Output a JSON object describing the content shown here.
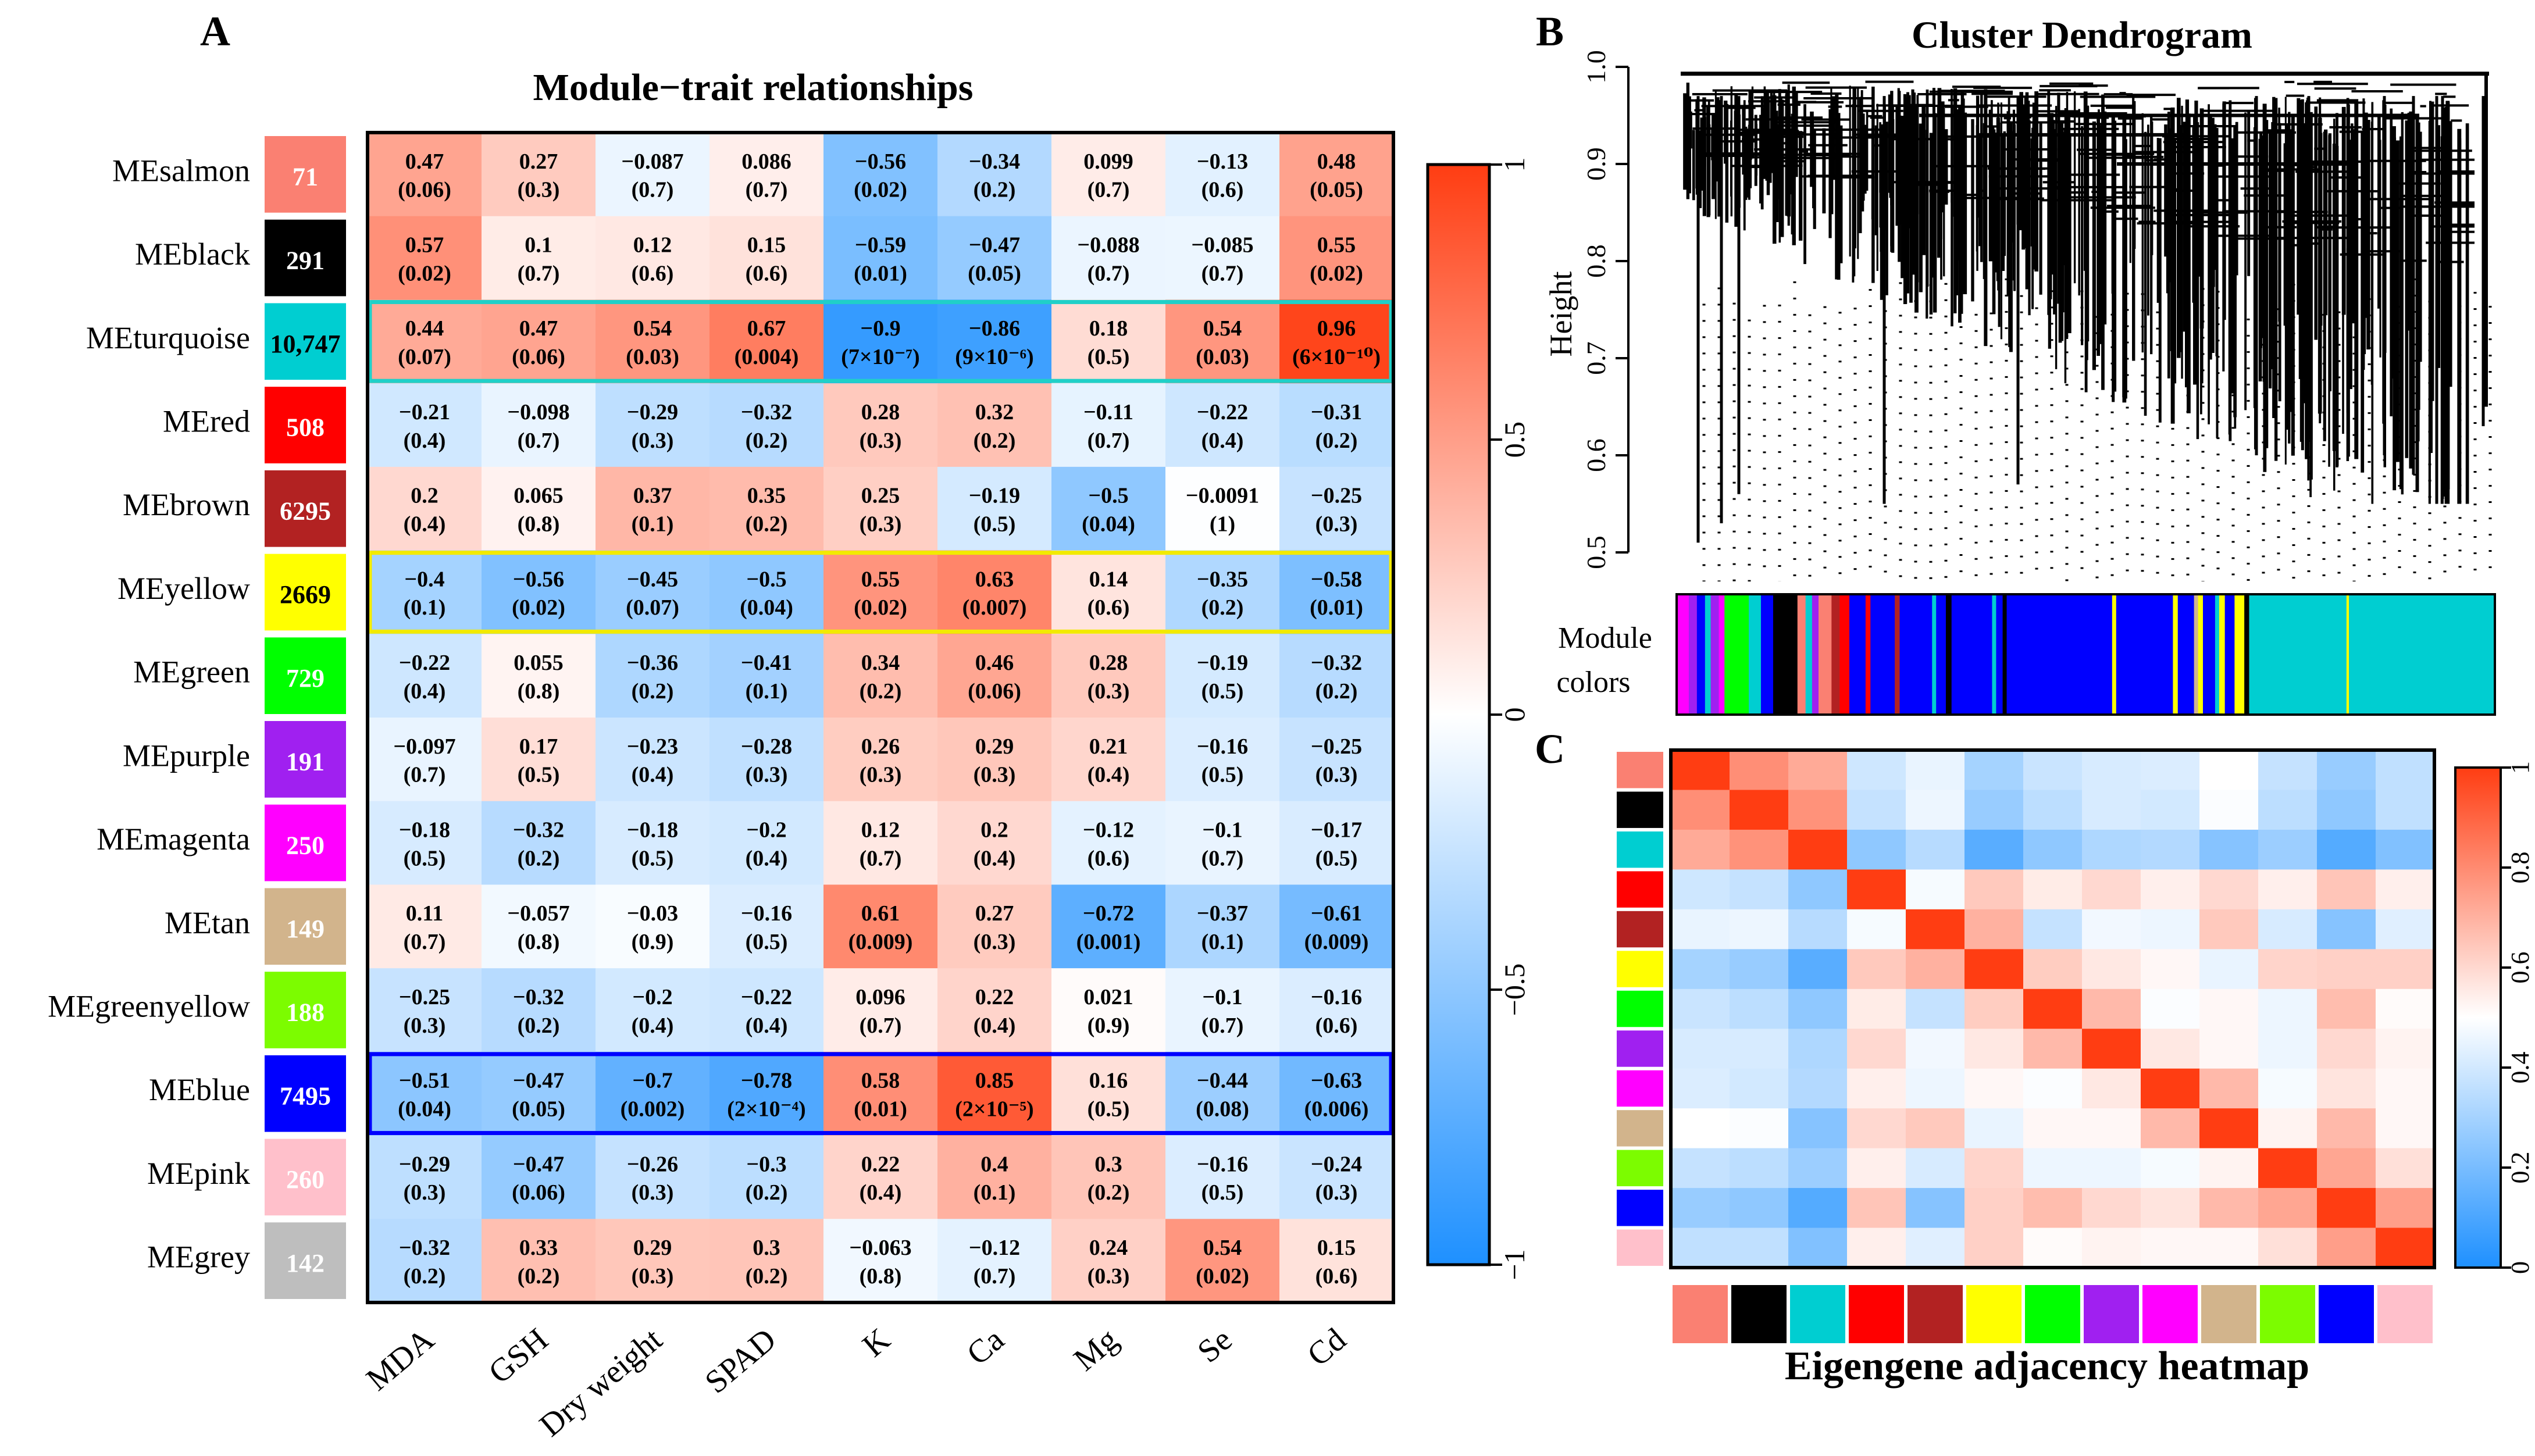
{
  "chart_data": [
    {
      "panel": "A",
      "type": "heatmap",
      "title": "Module−trait relationships",
      "columns": [
        "MDA",
        "GSH",
        "Dry weight",
        "SPAD",
        "K",
        "Ca",
        "Mg",
        "Se",
        "Cd"
      ],
      "rows": [
        {
          "name": "MEsalmon",
          "color": "#FA8072",
          "count": "71",
          "count_color": "#ffffff",
          "r": [
            0.47,
            0.27,
            -0.087,
            0.086,
            -0.56,
            -0.34,
            0.099,
            -0.13,
            0.48
          ],
          "r_label": [
            "0.47",
            "0.27",
            "−0.087",
            "0.086",
            "−0.56",
            "−0.34",
            "0.099",
            "−0.13",
            "0.48"
          ],
          "p": [
            "(0.06)",
            "(0.3)",
            "(0.7)",
            "(0.7)",
            "(0.02)",
            "(0.2)",
            "(0.7)",
            "(0.6)",
            "(0.05)"
          ]
        },
        {
          "name": "MEblack",
          "color": "#000000",
          "count": "291",
          "count_color": "#ffffff",
          "r": [
            0.57,
            0.1,
            0.12,
            0.15,
            -0.59,
            -0.47,
            -0.088,
            -0.085,
            0.55
          ],
          "r_label": [
            "0.57",
            "0.1",
            "0.12",
            "0.15",
            "−0.59",
            "−0.47",
            "−0.088",
            "−0.085",
            "0.55"
          ],
          "p": [
            "(0.02)",
            "(0.7)",
            "(0.6)",
            "(0.6)",
            "(0.01)",
            "(0.05)",
            "(0.7)",
            "(0.7)",
            "(0.02)"
          ]
        },
        {
          "name": "MEturquoise",
          "color": "#00CED1",
          "count": "10,747",
          "count_color": "#000000",
          "r": [
            0.44,
            0.47,
            0.54,
            0.67,
            -0.9,
            -0.86,
            0.18,
            0.54,
            0.96
          ],
          "r_label": [
            "0.44",
            "0.47",
            "0.54",
            "0.67",
            "−0.9",
            "−0.86",
            "0.18",
            "0.54",
            "0.96"
          ],
          "p": [
            "(0.07)",
            "(0.06)",
            "(0.03)",
            "(0.004)",
            "(7×10⁻⁷)",
            "(9×10⁻⁶)",
            "(0.5)",
            "(0.03)",
            "(6×10⁻¹⁰)"
          ]
        },
        {
          "name": "MEred",
          "color": "#FF0000",
          "count": "508",
          "count_color": "#ffffff",
          "r": [
            -0.21,
            -0.098,
            -0.29,
            -0.32,
            0.28,
            0.32,
            -0.11,
            -0.22,
            -0.31
          ],
          "r_label": [
            "−0.21",
            "−0.098",
            "−0.29",
            "−0.32",
            "0.28",
            "0.32",
            "−0.11",
            "−0.22",
            "−0.31"
          ],
          "p": [
            "(0.4)",
            "(0.7)",
            "(0.3)",
            "(0.2)",
            "(0.3)",
            "(0.2)",
            "(0.7)",
            "(0.4)",
            "(0.2)"
          ]
        },
        {
          "name": "MEbrown",
          "color": "#B22222",
          "count": "6295",
          "count_color": "#ffffff",
          "r": [
            0.2,
            0.065,
            0.37,
            0.35,
            0.25,
            -0.19,
            -0.5,
            -0.0091,
            -0.25
          ],
          "r_label": [
            "0.2",
            "0.065",
            "0.37",
            "0.35",
            "0.25",
            "−0.19",
            "−0.5",
            "−0.0091",
            "−0.25"
          ],
          "p": [
            "(0.4)",
            "(0.8)",
            "(0.1)",
            "(0.2)",
            "(0.3)",
            "(0.5)",
            "(0.04)",
            "(1)",
            "(0.3)"
          ]
        },
        {
          "name": "MEyellow",
          "color": "#FFFF00",
          "count": "2669",
          "count_color": "#000000",
          "r": [
            -0.4,
            -0.56,
            -0.45,
            -0.5,
            0.55,
            0.63,
            0.14,
            -0.35,
            -0.58
          ],
          "r_label": [
            "−0.4",
            "−0.56",
            "−0.45",
            "−0.5",
            "0.55",
            "0.63",
            "0.14",
            "−0.35",
            "−0.58"
          ],
          "p": [
            "(0.1)",
            "(0.02)",
            "(0.07)",
            "(0.04)",
            "(0.02)",
            "(0.007)",
            "(0.6)",
            "(0.2)",
            "(0.01)"
          ]
        },
        {
          "name": "MEgreen",
          "color": "#00FF00",
          "count": "729",
          "count_color": "#ffffff",
          "r": [
            -0.22,
            0.055,
            -0.36,
            -0.41,
            0.34,
            0.46,
            0.28,
            -0.19,
            -0.32
          ],
          "r_label": [
            "−0.22",
            "0.055",
            "−0.36",
            "−0.41",
            "0.34",
            "0.46",
            "0.28",
            "−0.19",
            "−0.32"
          ],
          "p": [
            "(0.4)",
            "(0.8)",
            "(0.2)",
            "(0.1)",
            "(0.2)",
            "(0.06)",
            "(0.3)",
            "(0.5)",
            "(0.2)"
          ]
        },
        {
          "name": "MEpurple",
          "color": "#A020F0",
          "count": "191",
          "count_color": "#ffffff",
          "r": [
            -0.097,
            0.17,
            -0.23,
            -0.28,
            0.26,
            0.29,
            0.21,
            -0.16,
            -0.25
          ],
          "r_label": [
            "−0.097",
            "0.17",
            "−0.23",
            "−0.28",
            "0.26",
            "0.29",
            "0.21",
            "−0.16",
            "−0.25"
          ],
          "p": [
            "(0.7)",
            "(0.5)",
            "(0.4)",
            "(0.3)",
            "(0.3)",
            "(0.3)",
            "(0.4)",
            "(0.5)",
            "(0.3)"
          ]
        },
        {
          "name": "MEmagenta",
          "color": "#FF00FF",
          "count": "250",
          "count_color": "#ffffff",
          "r": [
            -0.18,
            -0.32,
            -0.18,
            -0.2,
            0.12,
            0.2,
            -0.12,
            -0.1,
            -0.17
          ],
          "r_label": [
            "−0.18",
            "−0.32",
            "−0.18",
            "−0.2",
            "0.12",
            "0.2",
            "−0.12",
            "−0.1",
            "−0.17"
          ],
          "p": [
            "(0.5)",
            "(0.2)",
            "(0.5)",
            "(0.4)",
            "(0.7)",
            "(0.4)",
            "(0.6)",
            "(0.7)",
            "(0.5)"
          ]
        },
        {
          "name": "MEtan",
          "color": "#D2B48C",
          "count": "149",
          "count_color": "#ffffff",
          "r": [
            0.11,
            -0.057,
            -0.03,
            -0.16,
            0.61,
            0.27,
            -0.72,
            -0.37,
            -0.61
          ],
          "r_label": [
            "0.11",
            "−0.057",
            "−0.03",
            "−0.16",
            "0.61",
            "0.27",
            "−0.72",
            "−0.37",
            "−0.61"
          ],
          "p": [
            "(0.7)",
            "(0.8)",
            "(0.9)",
            "(0.5)",
            "(0.009)",
            "(0.3)",
            "(0.001)",
            "(0.1)",
            "(0.009)"
          ]
        },
        {
          "name": "MEgreenyellow",
          "color": "#7CFC00",
          "count": "188",
          "count_color": "#ffffff",
          "r": [
            -0.25,
            -0.32,
            -0.2,
            -0.22,
            0.096,
            0.22,
            0.021,
            -0.1,
            -0.16
          ],
          "r_label": [
            "−0.25",
            "−0.32",
            "−0.2",
            "−0.22",
            "0.096",
            "0.22",
            "0.021",
            "−0.1",
            "−0.16"
          ],
          "p": [
            "(0.3)",
            "(0.2)",
            "(0.4)",
            "(0.4)",
            "(0.7)",
            "(0.4)",
            "(0.9)",
            "(0.7)",
            "(0.6)"
          ]
        },
        {
          "name": "MEblue",
          "color": "#0000FF",
          "count": "7495",
          "count_color": "#ffffff",
          "r": [
            -0.51,
            -0.47,
            -0.7,
            -0.78,
            0.58,
            0.85,
            0.16,
            -0.44,
            -0.63
          ],
          "r_label": [
            "−0.51",
            "−0.47",
            "−0.7",
            "−0.78",
            "0.58",
            "0.85",
            "0.16",
            "−0.44",
            "−0.63"
          ],
          "p": [
            "(0.04)",
            "(0.05)",
            "(0.002)",
            "(2×10⁻⁴)",
            "(0.01)",
            "(2×10⁻⁵)",
            "(0.5)",
            "(0.08)",
            "(0.006)"
          ]
        },
        {
          "name": "MEpink",
          "color": "#FFC0CB",
          "count": "260",
          "count_color": "#ffffff",
          "r": [
            -0.29,
            -0.47,
            -0.26,
            -0.3,
            0.22,
            0.4,
            0.3,
            -0.16,
            -0.24
          ],
          "r_label": [
            "−0.29",
            "−0.47",
            "−0.26",
            "−0.3",
            "0.22",
            "0.4",
            "0.3",
            "−0.16",
            "−0.24"
          ],
          "p": [
            "(0.3)",
            "(0.06)",
            "(0.3)",
            "(0.2)",
            "(0.4)",
            "(0.1)",
            "(0.2)",
            "(0.5)",
            "(0.3)"
          ]
        },
        {
          "name": "MEgrey",
          "color": "#BEBEBE",
          "count": "142",
          "count_color": "#ffffff",
          "r": [
            -0.32,
            0.33,
            0.29,
            0.3,
            -0.063,
            -0.12,
            0.24,
            0.54,
            0.15
          ],
          "r_label": [
            "−0.32",
            "0.33",
            "0.29",
            "0.3",
            "−0.063",
            "−0.12",
            "0.24",
            "0.54",
            "0.15"
          ],
          "p": [
            "(0.2)",
            "(0.2)",
            "(0.3)",
            "(0.2)",
            "(0.8)",
            "(0.7)",
            "(0.3)",
            "(0.02)",
            "(0.6)"
          ]
        }
      ],
      "highlighted_rows": [
        {
          "row": "MEturquoise",
          "color": "#20D0C8"
        },
        {
          "row": "MEyellow",
          "color": "#F2EA00"
        },
        {
          "row": "MEblue",
          "color": "#0000FF"
        }
      ],
      "colorbar": {
        "range": [
          -1,
          1
        ],
        "ticks": [
          "−1",
          "−0.5",
          "0",
          "0.5",
          "1"
        ],
        "tick_values": [
          -1,
          -0.5,
          0,
          0.5,
          1
        ]
      }
    },
    {
      "panel": "B",
      "type": "dendrogram",
      "title": "Cluster Dendrogram",
      "ylabel": "Height",
      "ylim": [
        0.5,
        1.0
      ],
      "yticks": [
        "0.5",
        "0.6",
        "0.7",
        "0.8",
        "0.9",
        "1.0"
      ],
      "ytick_values": [
        0.5,
        0.6,
        0.7,
        0.8,
        0.9,
        1.0
      ],
      "color_bar_label": [
        "Module",
        "colors"
      ],
      "module_color_strip": [
        {
          "color": "#FF00FF",
          "w": 1.5
        },
        {
          "color": "#A020F0",
          "w": 1
        },
        {
          "color": "#0000FF",
          "w": 1
        },
        {
          "color": "#00CED1",
          "w": 0.7
        },
        {
          "color": "#A020F0",
          "w": 1
        },
        {
          "color": "#FF00FF",
          "w": 0.7
        },
        {
          "color": "#00FF00",
          "w": 3
        },
        {
          "color": "#00CED1",
          "w": 1.5
        },
        {
          "color": "#0000FF",
          "w": 1.5
        },
        {
          "color": "#000000",
          "w": 3
        },
        {
          "color": "#FA8072",
          "w": 1
        },
        {
          "color": "#00CED1",
          "w": 0.8
        },
        {
          "color": "#A020F0",
          "w": 0.8
        },
        {
          "color": "#FA8072",
          "w": 1.6
        },
        {
          "color": "#B22222",
          "w": 1
        },
        {
          "color": "#FF0000",
          "w": 1.2
        },
        {
          "color": "#0000FF",
          "w": 2
        },
        {
          "color": "#FF0000",
          "w": 0.6
        },
        {
          "color": "#0000FF",
          "w": 3
        },
        {
          "color": "#B22222",
          "w": 0.6
        },
        {
          "color": "#0000FF",
          "w": 4
        },
        {
          "color": "#00CED1",
          "w": 0.5
        },
        {
          "color": "#0000FF",
          "w": 1.2
        },
        {
          "color": "#000000",
          "w": 0.7
        },
        {
          "color": "#0000FF",
          "w": 5
        },
        {
          "color": "#00CED1",
          "w": 0.5
        },
        {
          "color": "#0000FF",
          "w": 0.8
        },
        {
          "color": "#000000",
          "w": 0.5
        },
        {
          "color": "#0000FF",
          "w": 13
        },
        {
          "color": "#FFFF00",
          "w": 0.5
        },
        {
          "color": "#0000FF",
          "w": 7
        },
        {
          "color": "#FFFF00",
          "w": 0.6
        },
        {
          "color": "#0000FF",
          "w": 2
        },
        {
          "color": "#D2B48C",
          "w": 0.5
        },
        {
          "color": "#FFFF00",
          "w": 0.6
        },
        {
          "color": "#0000FF",
          "w": 1.5
        },
        {
          "color": "#00CED1",
          "w": 0.5
        },
        {
          "color": "#FFFF00",
          "w": 0.7
        },
        {
          "color": "#0000FF",
          "w": 1.2
        },
        {
          "color": "#FFFF00",
          "w": 1.2
        },
        {
          "color": "#000000",
          "w": 0.6
        },
        {
          "color": "#00CED1",
          "w": 12
        },
        {
          "color": "#FFFF00",
          "w": 0.3
        },
        {
          "color": "#00CED1",
          "w": 18
        }
      ]
    },
    {
      "panel": "C",
      "type": "heatmap",
      "title": "Eigengene adjacency heatmap",
      "module_colors": [
        "#FA8072",
        "#000000",
        "#00CED1",
        "#FF0000",
        "#B22222",
        "#FFFF00",
        "#00FF00",
        "#A020F0",
        "#FF00FF",
        "#D2B48C",
        "#7CFC00",
        "#0000FF",
        "#FFC0CB"
      ],
      "matrix": [
        [
          1.0,
          0.79,
          0.72,
          0.39,
          0.45,
          0.3,
          0.38,
          0.41,
          0.42,
          0.5,
          0.37,
          0.27,
          0.36
        ],
        [
          0.79,
          1.0,
          0.78,
          0.37,
          0.46,
          0.27,
          0.35,
          0.41,
          0.4,
          0.49,
          0.35,
          0.25,
          0.36
        ],
        [
          0.72,
          0.78,
          1.0,
          0.25,
          0.34,
          0.13,
          0.25,
          0.32,
          0.33,
          0.23,
          0.28,
          0.12,
          0.22
        ],
        [
          0.39,
          0.37,
          0.25,
          1.0,
          0.48,
          0.64,
          0.55,
          0.6,
          0.54,
          0.6,
          0.54,
          0.65,
          0.54
        ],
        [
          0.45,
          0.46,
          0.34,
          0.48,
          1.0,
          0.7,
          0.37,
          0.47,
          0.46,
          0.64,
          0.41,
          0.23,
          0.43
        ],
        [
          0.3,
          0.27,
          0.13,
          0.64,
          0.7,
          1.0,
          0.63,
          0.56,
          0.52,
          0.45,
          0.61,
          0.62,
          0.62
        ],
        [
          0.38,
          0.35,
          0.25,
          0.55,
          0.37,
          0.63,
          1.0,
          0.68,
          0.49,
          0.52,
          0.46,
          0.67,
          0.51
        ],
        [
          0.41,
          0.41,
          0.32,
          0.6,
          0.47,
          0.56,
          0.68,
          1.0,
          0.56,
          0.52,
          0.46,
          0.6,
          0.53
        ],
        [
          0.42,
          0.4,
          0.33,
          0.54,
          0.46,
          0.52,
          0.49,
          0.56,
          1.0,
          0.68,
          0.48,
          0.57,
          0.52
        ],
        [
          0.5,
          0.49,
          0.23,
          0.6,
          0.64,
          0.45,
          0.52,
          0.52,
          0.68,
          1.0,
          0.53,
          0.68,
          0.52
        ],
        [
          0.37,
          0.35,
          0.28,
          0.54,
          0.41,
          0.61,
          0.46,
          0.46,
          0.48,
          0.53,
          1.0,
          0.73,
          0.58
        ],
        [
          0.27,
          0.25,
          0.12,
          0.65,
          0.23,
          0.62,
          0.67,
          0.6,
          0.57,
          0.68,
          0.73,
          1.0,
          0.75
        ],
        [
          0.36,
          0.36,
          0.22,
          0.54,
          0.43,
          0.62,
          0.51,
          0.53,
          0.52,
          0.52,
          0.58,
          0.75,
          1.0
        ]
      ],
      "colorbar": {
        "range": [
          0,
          1
        ],
        "ticks": [
          "0",
          "0.2",
          "0.4",
          "0.6",
          "0.8",
          "1"
        ],
        "tick_values": [
          0,
          0.2,
          0.4,
          0.6,
          0.8,
          1
        ]
      }
    }
  ]
}
